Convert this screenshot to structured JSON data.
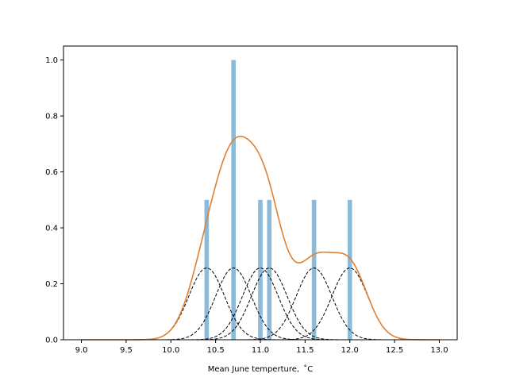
{
  "chart_data": {
    "type": "bar",
    "title": "",
    "xlabel": "Mean June temperture, $^\\circ$C",
    "xlabel_display": "Mean June temperture,  ˚C",
    "ylabel": "",
    "xlim": [
      8.8,
      13.2
    ],
    "ylim": [
      0,
      1.05
    ],
    "xticks": [
      9.0,
      9.5,
      10.0,
      10.5,
      11.0,
      11.5,
      12.0,
      12.5,
      13.0
    ],
    "yticks": [
      0.0,
      0.2,
      0.4,
      0.6,
      0.8,
      1.0
    ],
    "grid": false,
    "histogram": {
      "bar_width": 0.05,
      "color": "#8cbbd9",
      "bars": [
        {
          "x": 10.4,
          "value": 0.5
        },
        {
          "x": 10.7,
          "value": 1.0
        },
        {
          "x": 11.0,
          "value": 0.5
        },
        {
          "x": 11.1,
          "value": 0.5
        },
        {
          "x": 11.6,
          "value": 0.5
        },
        {
          "x": 12.0,
          "value": 0.5
        }
      ]
    },
    "kernels": {
      "style": "dashed",
      "color": "#000000",
      "centers": [
        10.4,
        10.7,
        11.0,
        11.1,
        11.6,
        12.0
      ],
      "peak": 0.2565,
      "sigma": 0.2
    },
    "kde": {
      "color": "#e08030",
      "x_range": [
        9.0,
        13.0
      ],
      "samples": [
        10.4,
        10.7,
        10.7,
        11.0,
        11.1,
        11.6,
        12.0
      ],
      "weight": 0.2565,
      "sigma": 0.2
    }
  }
}
